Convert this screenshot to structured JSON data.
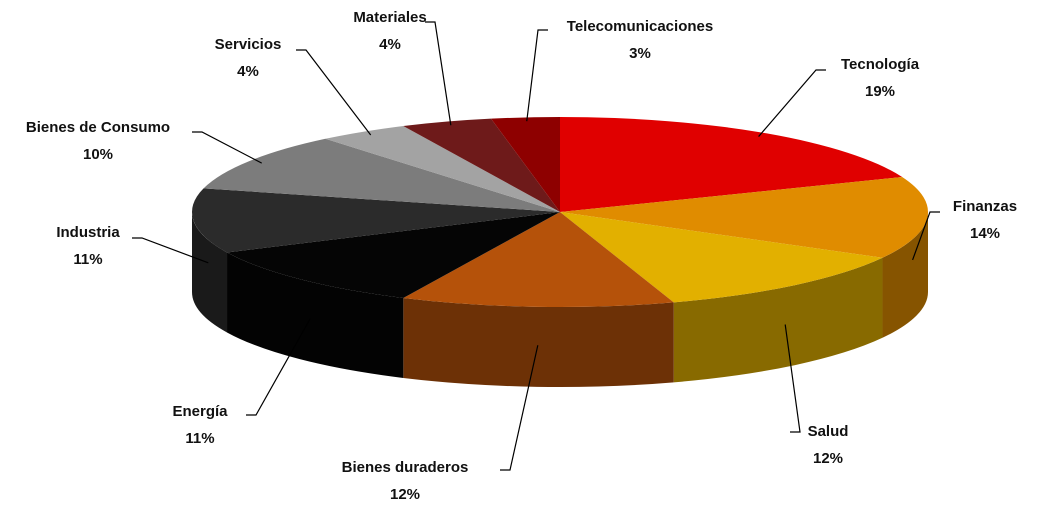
{
  "chart_data": {
    "type": "pie3d",
    "categories": [
      "Tecnología",
      "Finanzas",
      "Salud",
      "Bienes duraderos",
      "Energía",
      "Industria",
      "Bienes de Consumo",
      "Servicios",
      "Materiales",
      "Telecomunicaciones"
    ],
    "values": [
      19,
      14,
      12,
      12,
      11,
      11,
      10,
      4,
      4,
      3
    ],
    "value_labels": [
      "19%",
      "14%",
      "12%",
      "12%",
      "11%",
      "11%",
      "10%",
      "4%",
      "4%",
      "3%"
    ],
    "colors": [
      "#e00000",
      "#e08c00",
      "#e2b000",
      "#b5520a",
      "#050505",
      "#2b2b2b",
      "#7c7c7c",
      "#a3a3a3",
      "#6e1a1a",
      "#8e0000"
    ]
  }
}
